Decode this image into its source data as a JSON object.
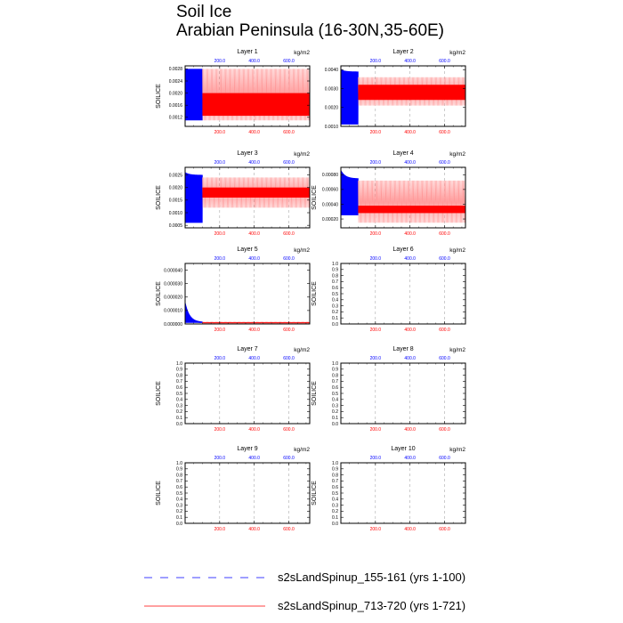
{
  "figure": {
    "title_line1": "Soil Ice",
    "title_line2": "Arabian Peninsula (16-30N,35-60E)"
  },
  "colors": {
    "series1": "#0000ff",
    "series2": "#ff0000",
    "series2_light": "#ff9a9a",
    "gridline": "#9a9a9a"
  },
  "legend": [
    {
      "label": "s2sLandSpinup_155-161 (yrs 1-100)",
      "style": "dashed",
      "color": "#0000ff"
    },
    {
      "label": "s2sLandSpinup_713-720 (yrs 1-721)",
      "style": "solid",
      "color": "#ff0000"
    }
  ],
  "chart_data": [
    {
      "type": "line",
      "title": "Layer 1",
      "ylabel": "SOILICE",
      "top_axis_label": "kg/m2",
      "xlim": [
        0,
        721
      ],
      "x_tick_values": [
        200,
        400,
        600
      ],
      "x_tick_labels": [
        "200.0",
        "400.0",
        "600.0"
      ],
      "ylim": [
        0.0009,
        0.0029
      ],
      "y_ticks": [
        "0.0012",
        "0.0016",
        "0.0020",
        "0.0024",
        "0.0028"
      ],
      "series": [
        {
          "x_range": [
            1,
            100
          ],
          "envelope_max": [
            0.0028,
            0.0028
          ],
          "envelope_min": [
            0.0011,
            0.0011
          ]
        },
        {
          "x_range": [
            100,
            721
          ],
          "envelope_max": [
            0.0028,
            0.0028
          ],
          "envelope_min": [
            0.0011,
            0.0011
          ],
          "dense_band": [
            0.00125,
            0.002
          ]
        }
      ]
    },
    {
      "type": "line",
      "title": "Layer 2",
      "ylabel": "",
      "top_axis_label": "kg/m2",
      "xlim": [
        0,
        721
      ],
      "x_tick_values": [
        200,
        400,
        600
      ],
      "x_tick_labels": [
        "200.0",
        "400.0",
        "600.0"
      ],
      "ylim": [
        0.001,
        0.0042
      ],
      "y_ticks": [
        "0.0010",
        "0.0020",
        "0.0030",
        "0.0040"
      ],
      "series": [
        {
          "x_range": [
            1,
            100
          ],
          "envelope_max": [
            0.004,
            0.0039
          ],
          "envelope_min": [
            0.0011,
            0.0011
          ]
        },
        {
          "x_range": [
            100,
            721
          ],
          "envelope_max": [
            0.0036,
            0.0036
          ],
          "envelope_min": [
            0.0021,
            0.0021
          ],
          "dense_band": [
            0.0024,
            0.0032
          ]
        }
      ]
    },
    {
      "type": "line",
      "title": "Layer 3",
      "ylabel": "SOILICE",
      "top_axis_label": "kg/m2",
      "xlim": [
        0,
        721
      ],
      "x_tick_values": [
        200,
        400,
        600
      ],
      "x_tick_labels": [
        "200.0",
        "400.0",
        "600.0"
      ],
      "ylim": [
        0.0004,
        0.0028
      ],
      "y_ticks": [
        "0.0005",
        "0.0010",
        "0.0015",
        "0.0020",
        "0.0025"
      ],
      "series": [
        {
          "x_range": [
            1,
            100
          ],
          "envelope_max": [
            0.0026,
            0.0025
          ],
          "envelope_min": [
            0.0006,
            0.0006
          ]
        },
        {
          "x_range": [
            100,
            721
          ],
          "envelope_max": [
            0.0024,
            0.0024
          ],
          "envelope_min": [
            0.0012,
            0.0012
          ],
          "dense_band": [
            0.0016,
            0.002
          ]
        }
      ]
    },
    {
      "type": "line",
      "title": "Layer 4",
      "ylabel": "SOILICE",
      "top_axis_label": "kg/m2",
      "xlim": [
        0,
        721
      ],
      "x_tick_values": [
        200,
        400,
        600
      ],
      "x_tick_labels": [
        "200.0",
        "400.0",
        "600.0"
      ],
      "ylim": [
        8e-05,
        0.0009
      ],
      "y_ticks": [
        "0.00020",
        "0.00040",
        "0.00060",
        "0.00080"
      ],
      "series": [
        {
          "x_range": [
            1,
            100
          ],
          "envelope_max": [
            0.00086,
            0.00075
          ],
          "envelope_min": [
            0.00025,
            0.00025
          ]
        },
        {
          "x_range": [
            100,
            721
          ],
          "envelope_max": [
            0.00072,
            0.00072
          ],
          "envelope_min": [
            0.00015,
            0.00015
          ],
          "dense_band": [
            0.00028,
            0.00038
          ]
        }
      ]
    },
    {
      "type": "line",
      "title": "Layer 5",
      "ylabel": "SOILICE",
      "top_axis_label": "kg/m2",
      "xlim": [
        0,
        721
      ],
      "x_tick_values": [
        200,
        400,
        600
      ],
      "x_tick_labels": [
        "200.0",
        "400.0",
        "600.0"
      ],
      "ylim": [
        0,
        4.5e-05
      ],
      "y_ticks": [
        "0.000000",
        "0.000010",
        "0.000020",
        "0.000030",
        "0.000040"
      ],
      "series": [
        {
          "x_range": [
            1,
            100
          ],
          "envelope_max": [
            1.6e-05,
            1.5e-06
          ],
          "envelope_min": [
            8e-07,
            8e-07
          ]
        },
        {
          "x_range": [
            100,
            721
          ],
          "envelope_max": [
            1.5e-06,
            1.5e-06
          ],
          "envelope_min": [
            6e-07,
            6e-07
          ],
          "dense_band": [
            8e-07,
            1.2e-06
          ]
        }
      ]
    },
    {
      "type": "line",
      "title": "Layer 6",
      "ylabel": "SOILICE",
      "top_axis_label": "kg/m2",
      "xlim": [
        0,
        721
      ],
      "x_tick_values": [
        200,
        400,
        600
      ],
      "x_tick_labels": [
        "200.0",
        "400.0",
        "600.0"
      ],
      "ylim": [
        0,
        1
      ],
      "y_ticks": [
        "0.0",
        "0.1",
        "0.2",
        "0.3",
        "0.4",
        "0.5",
        "0.6",
        "0.7",
        "0.8",
        "0.9",
        "1.0"
      ],
      "series": []
    },
    {
      "type": "line",
      "title": "Layer 7",
      "ylabel": "SOILICE",
      "top_axis_label": "kg/m2",
      "xlim": [
        0,
        721
      ],
      "x_tick_values": [
        200,
        400,
        600
      ],
      "x_tick_labels": [
        "200.0",
        "400.0",
        "600.0"
      ],
      "ylim": [
        0,
        1
      ],
      "y_ticks": [
        "0.0",
        "0.1",
        "0.2",
        "0.3",
        "0.4",
        "0.5",
        "0.6",
        "0.7",
        "0.8",
        "0.9",
        "1.0"
      ],
      "series": []
    },
    {
      "type": "line",
      "title": "Layer 8",
      "ylabel": "SOILICE",
      "top_axis_label": "kg/m2",
      "xlim": [
        0,
        721
      ],
      "x_tick_values": [
        200,
        400,
        600
      ],
      "x_tick_labels": [
        "200.0",
        "400.0",
        "600.0"
      ],
      "ylim": [
        0,
        1
      ],
      "y_ticks": [
        "0.0",
        "0.1",
        "0.2",
        "0.3",
        "0.4",
        "0.5",
        "0.6",
        "0.7",
        "0.8",
        "0.9",
        "1.0"
      ],
      "series": []
    },
    {
      "type": "line",
      "title": "Layer 9",
      "ylabel": "SOILICE",
      "top_axis_label": "kg/m2",
      "xlim": [
        0,
        721
      ],
      "x_tick_values": [
        200,
        400,
        600
      ],
      "x_tick_labels": [
        "200.0",
        "400.0",
        "600.0"
      ],
      "ylim": [
        0,
        1
      ],
      "y_ticks": [
        "0.0",
        "0.1",
        "0.2",
        "0.3",
        "0.4",
        "0.5",
        "0.6",
        "0.7",
        "0.8",
        "0.9",
        "1.0"
      ],
      "series": []
    },
    {
      "type": "line",
      "title": "Layer 10",
      "ylabel": "SOILICE",
      "top_axis_label": "kg/m2",
      "xlim": [
        0,
        721
      ],
      "x_tick_values": [
        200,
        400,
        600
      ],
      "x_tick_labels": [
        "200.0",
        "400.0",
        "600.0"
      ],
      "ylim": [
        0,
        1
      ],
      "y_ticks": [
        "0.0",
        "0.1",
        "0.2",
        "0.3",
        "0.4",
        "0.5",
        "0.6",
        "0.7",
        "0.8",
        "0.9",
        "1.0"
      ],
      "series": []
    }
  ]
}
